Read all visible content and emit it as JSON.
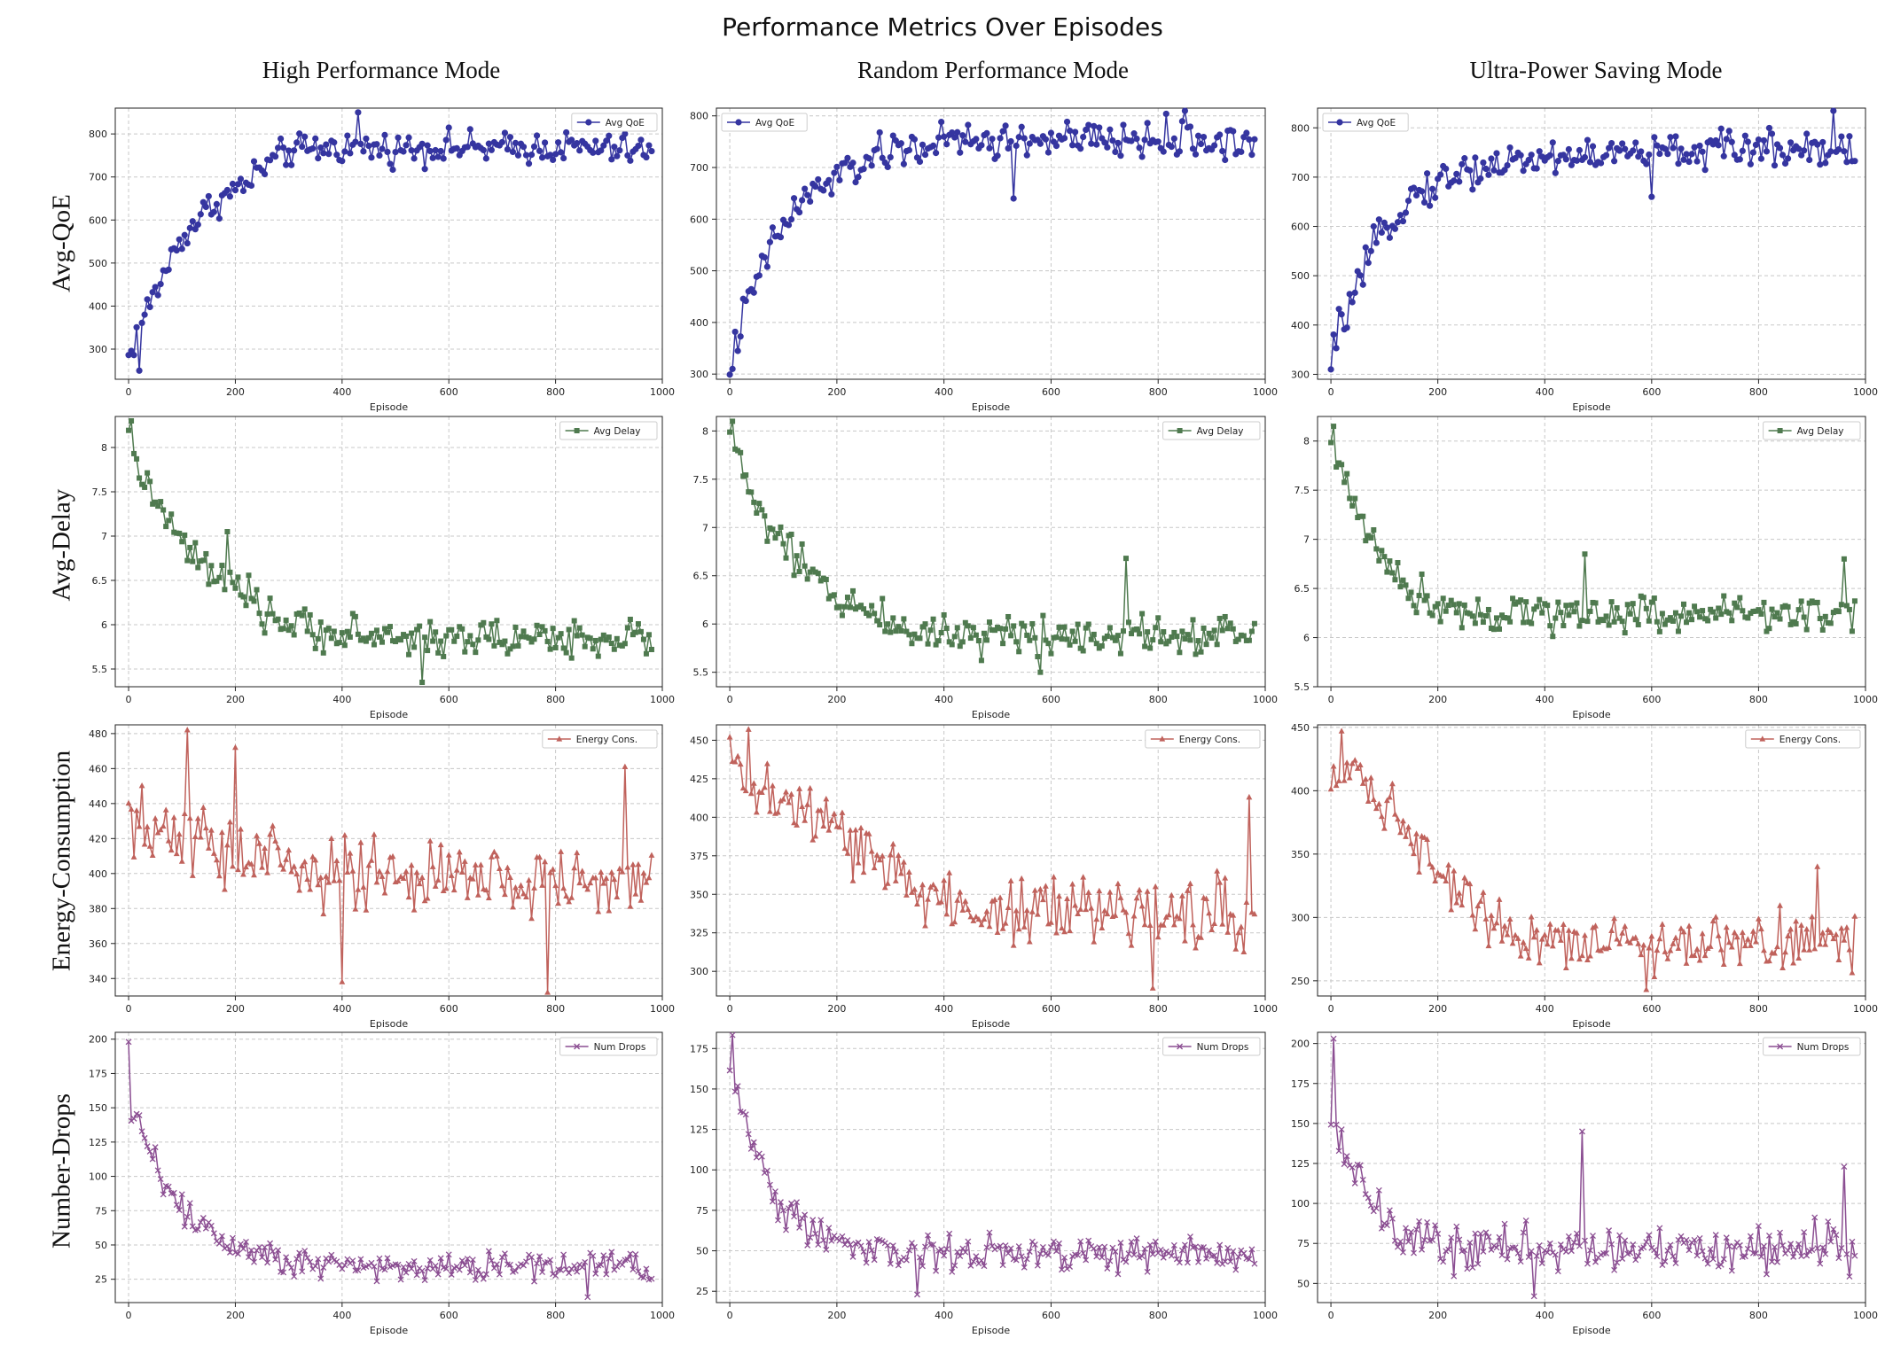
{
  "figure": {
    "title": "Performance Metrics Over Episodes",
    "column_titles": [
      "High Performance Mode",
      "Random Performance Mode",
      "Ultra-Power Saving Mode"
    ],
    "row_labels": [
      "Avg-QoE",
      "Avg-Delay",
      "Energy-Consumption",
      "Number-Drops"
    ],
    "colors": {
      "qoe": "#3535a0",
      "delay": "#4f7a4f",
      "energy": "#c0625c",
      "drops": "#8b4e92",
      "grid": "#c8c8c8"
    }
  },
  "chart_data": [
    {
      "type": "line",
      "mode": "High Performance Mode",
      "metric": "Avg-QoE",
      "legend": "Avg QoE",
      "marker": "circle",
      "color": "#3535a0",
      "xlabel": "Episode",
      "xlim": [
        -25,
        1000
      ],
      "ylim": [
        230,
        860
      ],
      "yticks": [
        300,
        400,
        500,
        600,
        700,
        800
      ],
      "xticks": [
        0,
        200,
        400,
        600,
        800,
        1000
      ],
      "x": [
        0,
        25,
        50,
        75,
        100,
        150,
        200,
        250,
        300,
        400,
        500,
        600,
        700,
        800,
        900,
        975
      ],
      "y": [
        280,
        370,
        430,
        500,
        560,
        630,
        670,
        720,
        760,
        770,
        765,
        770,
        765,
        770,
        765,
        760
      ],
      "noise": 28,
      "spikes": [
        [
          20,
          250
        ],
        [
          430,
          850
        ],
        [
          230,
          680
        ]
      ]
    },
    {
      "type": "line",
      "mode": "Random Performance Mode",
      "metric": "Avg-QoE",
      "legend": "Avg QoE",
      "marker": "circle",
      "color": "#3535a0",
      "xlabel": "Episode",
      "xlim": [
        -25,
        1000
      ],
      "ylim": [
        290,
        815
      ],
      "yticks": [
        300,
        400,
        500,
        600,
        700,
        800
      ],
      "xticks": [
        0,
        200,
        400,
        600,
        800,
        1000
      ],
      "x": [
        0,
        25,
        50,
        75,
        100,
        150,
        200,
        250,
        300,
        400,
        500,
        600,
        700,
        800,
        900,
        975
      ],
      "y": [
        320,
        410,
        480,
        540,
        590,
        650,
        680,
        710,
        730,
        750,
        750,
        755,
        750,
        755,
        750,
        750
      ],
      "noise": 28,
      "spikes": [
        [
          5,
          310
        ],
        [
          850,
          825
        ],
        [
          530,
          640
        ]
      ]
    },
    {
      "type": "line",
      "mode": "Ultra-Power Saving Mode",
      "metric": "Avg-QoE",
      "legend": "Avg QoE",
      "marker": "circle",
      "color": "#3535a0",
      "xlabel": "Episode",
      "xlim": [
        -25,
        1000
      ],
      "ylim": [
        290,
        840
      ],
      "yticks": [
        300,
        400,
        500,
        600,
        700,
        800
      ],
      "xticks": [
        0,
        200,
        400,
        600,
        800,
        1000
      ],
      "x": [
        0,
        25,
        50,
        75,
        100,
        150,
        200,
        250,
        300,
        400,
        500,
        600,
        700,
        800,
        900,
        975
      ],
      "y": [
        340,
        420,
        470,
        540,
        600,
        660,
        690,
        710,
        725,
        740,
        745,
        750,
        755,
        760,
        760,
        760
      ],
      "noise": 28,
      "spikes": [
        [
          2,
          310
        ],
        [
          940,
          840
        ],
        [
          600,
          660
        ]
      ]
    },
    {
      "type": "line",
      "mode": "High Performance Mode",
      "metric": "Avg-Delay",
      "legend": "Avg Delay",
      "marker": "square",
      "color": "#4f7a4f",
      "xlabel": "Episode",
      "xlim": [
        -25,
        1000
      ],
      "ylim": [
        5.3,
        8.35
      ],
      "yticks": [
        5.5,
        6.0,
        6.5,
        7.0,
        7.5,
        8.0
      ],
      "xticks": [
        0,
        200,
        400,
        600,
        800,
        1000
      ],
      "x": [
        0,
        25,
        50,
        100,
        150,
        200,
        250,
        300,
        400,
        500,
        600,
        700,
        800,
        900,
        975
      ],
      "y": [
        8.0,
        7.7,
        7.4,
        6.9,
        6.6,
        6.4,
        6.15,
        6.0,
        5.9,
        5.85,
        5.85,
        5.85,
        5.85,
        5.85,
        5.85
      ],
      "noise": 0.16,
      "spikes": [
        [
          3,
          8.3
        ],
        [
          185,
          7.05
        ],
        [
          550,
          5.35
        ]
      ]
    },
    {
      "type": "line",
      "mode": "Random Performance Mode",
      "metric": "Avg-Delay",
      "legend": "Avg Delay",
      "marker": "square",
      "color": "#4f7a4f",
      "xlabel": "Episode",
      "xlim": [
        -25,
        1000
      ],
      "ylim": [
        5.35,
        8.15
      ],
      "yticks": [
        5.5,
        6.0,
        6.5,
        7.0,
        7.5,
        8.0
      ],
      "xticks": [
        0,
        200,
        400,
        600,
        800,
        1000
      ],
      "x": [
        0,
        25,
        50,
        100,
        150,
        200,
        250,
        300,
        400,
        500,
        600,
        700,
        800,
        900,
        975
      ],
      "y": [
        7.95,
        7.6,
        7.2,
        6.8,
        6.5,
        6.3,
        6.15,
        6.0,
        5.9,
        5.9,
        5.9,
        5.9,
        5.9,
        5.9,
        5.9
      ],
      "noise": 0.16,
      "spikes": [
        [
          3,
          8.1
        ],
        [
          740,
          6.68
        ],
        [
          580,
          5.5
        ]
      ]
    },
    {
      "type": "line",
      "mode": "Ultra-Power Saving Mode",
      "metric": "Avg-Delay",
      "legend": "Avg Delay",
      "marker": "square",
      "color": "#4f7a4f",
      "xlabel": "Episode",
      "xlim": [
        -25,
        1000
      ],
      "ylim": [
        5.5,
        8.25
      ],
      "yticks": [
        5.5,
        6.0,
        6.5,
        7.0,
        7.5,
        8.0
      ],
      "xticks": [
        0,
        200,
        400,
        600,
        800,
        1000
      ],
      "x": [
        0,
        25,
        50,
        100,
        150,
        200,
        250,
        300,
        400,
        500,
        600,
        700,
        800,
        900,
        975
      ],
      "y": [
        7.9,
        7.6,
        7.3,
        6.8,
        6.45,
        6.35,
        6.3,
        6.25,
        6.25,
        6.25,
        6.25,
        6.25,
        6.25,
        6.25,
        6.25
      ],
      "noise": 0.15,
      "spikes": [
        [
          3,
          8.15
        ],
        [
          475,
          6.85
        ],
        [
          960,
          6.8
        ]
      ]
    },
    {
      "type": "line",
      "mode": "High Performance Mode",
      "metric": "Energy-Consumption",
      "legend": "Energy Cons.",
      "marker": "triangle",
      "color": "#c0625c",
      "xlabel": "Episode",
      "xlim": [
        -25,
        1000
      ],
      "ylim": [
        330,
        485
      ],
      "yticks": [
        340,
        360,
        380,
        400,
        420,
        440,
        460,
        480
      ],
      "xticks": [
        0,
        200,
        400,
        600,
        800,
        1000
      ],
      "x": [
        0,
        100,
        200,
        300,
        400,
        500,
        600,
        700,
        800,
        900,
        975
      ],
      "y": [
        425,
        420,
        412,
        405,
        400,
        398,
        396,
        396,
        396,
        395,
        395
      ],
      "noise": 17,
      "spikes": [
        [
          108,
          482
        ],
        [
          200,
          472
        ],
        [
          930,
          461
        ],
        [
          785,
          332
        ],
        [
          400,
          338
        ]
      ]
    },
    {
      "type": "line",
      "mode": "Random Performance Mode",
      "metric": "Energy-Consumption",
      "legend": "Energy Cons.",
      "marker": "triangle",
      "color": "#c0625c",
      "xlabel": "Episode",
      "xlim": [
        -25,
        1000
      ],
      "ylim": [
        284,
        460
      ],
      "yticks": [
        300,
        325,
        350,
        375,
        400,
        425,
        450
      ],
      "xticks": [
        0,
        200,
        400,
        600,
        800,
        1000
      ],
      "x": [
        0,
        50,
        100,
        150,
        200,
        250,
        300,
        350,
        400,
        500,
        600,
        700,
        800,
        900,
        975
      ],
      "y": [
        430,
        420,
        410,
        400,
        390,
        378,
        365,
        352,
        345,
        340,
        338,
        338,
        338,
        338,
        340
      ],
      "noise": 18,
      "spikes": [
        [
          35,
          457
        ],
        [
          970,
          413
        ],
        [
          790,
          289
        ]
      ]
    },
    {
      "type": "line",
      "mode": "Ultra-Power Saving Mode",
      "metric": "Energy-Consumption",
      "legend": "Energy Cons.",
      "marker": "triangle",
      "color": "#c0625c",
      "xlabel": "Episode",
      "xlim": [
        -25,
        1000
      ],
      "ylim": [
        238,
        452
      ],
      "yticks": [
        250,
        300,
        350,
        400,
        450
      ],
      "xticks": [
        0,
        200,
        400,
        600,
        800,
        1000
      ],
      "x": [
        0,
        50,
        100,
        150,
        200,
        250,
        300,
        350,
        400,
        500,
        600,
        700,
        800,
        900,
        975
      ],
      "y": [
        418,
        415,
        390,
        365,
        340,
        320,
        300,
        290,
        283,
        280,
        280,
        280,
        280,
        280,
        280
      ],
      "noise": 16,
      "spikes": [
        [
          20,
          447
        ],
        [
          910,
          340
        ],
        [
          590,
          243
        ]
      ]
    },
    {
      "type": "line",
      "mode": "High Performance Mode",
      "metric": "Number-Drops",
      "legend": "Num Drops",
      "marker": "x",
      "color": "#8b4e92",
      "xlabel": "Episode",
      "xlim": [
        -25,
        1000
      ],
      "ylim": [
        8,
        205
      ],
      "yticks": [
        25,
        50,
        75,
        100,
        125,
        150,
        175,
        200
      ],
      "xticks": [
        0,
        200,
        400,
        600,
        800,
        1000
      ],
      "x": [
        0,
        25,
        50,
        75,
        100,
        150,
        200,
        250,
        300,
        400,
        500,
        600,
        700,
        800,
        900,
        975
      ],
      "y": [
        150,
        135,
        110,
        90,
        75,
        60,
        52,
        45,
        40,
        36,
        35,
        35,
        35,
        35,
        35,
        35
      ],
      "noise": 9,
      "spikes": [
        [
          2,
          198
        ],
        [
          860,
          12
        ]
      ]
    },
    {
      "type": "line",
      "mode": "Random Performance Mode",
      "metric": "Number-Drops",
      "legend": "Num Drops",
      "marker": "x",
      "color": "#8b4e92",
      "xlabel": "Episode",
      "xlim": [
        -25,
        1000
      ],
      "ylim": [
        18,
        185
      ],
      "yticks": [
        25,
        50,
        75,
        100,
        125,
        150,
        175
      ],
      "xticks": [
        0,
        200,
        400,
        600,
        800,
        1000
      ],
      "x": [
        0,
        25,
        50,
        75,
        100,
        150,
        200,
        250,
        300,
        400,
        500,
        600,
        700,
        800,
        900,
        975
      ],
      "y": [
        165,
        135,
        110,
        90,
        75,
        65,
        58,
        52,
        50,
        48,
        48,
        48,
        48,
        48,
        48,
        48
      ],
      "noise": 9,
      "spikes": [
        [
          3,
          188
        ],
        [
          350,
          23
        ]
      ]
    },
    {
      "type": "line",
      "mode": "Ultra-Power Saving Mode",
      "metric": "Number-Drops",
      "legend": "Num Drops",
      "marker": "x",
      "color": "#8b4e92",
      "xlabel": "Episode",
      "xlim": [
        -25,
        1000
      ],
      "ylim": [
        38,
        207
      ],
      "yticks": [
        50,
        75,
        100,
        125,
        150,
        175,
        200
      ],
      "xticks": [
        0,
        200,
        400,
        600,
        800,
        1000
      ],
      "x": [
        0,
        25,
        50,
        75,
        100,
        150,
        200,
        250,
        300,
        400,
        500,
        600,
        700,
        800,
        900,
        975
      ],
      "y": [
        150,
        135,
        115,
        100,
        88,
        78,
        73,
        72,
        72,
        72,
        72,
        72,
        72,
        72,
        72,
        72
      ],
      "noise": 11,
      "spikes": [
        [
          3,
          203
        ],
        [
          470,
          145
        ],
        [
          960,
          123
        ],
        [
          380,
          42
        ]
      ]
    }
  ]
}
